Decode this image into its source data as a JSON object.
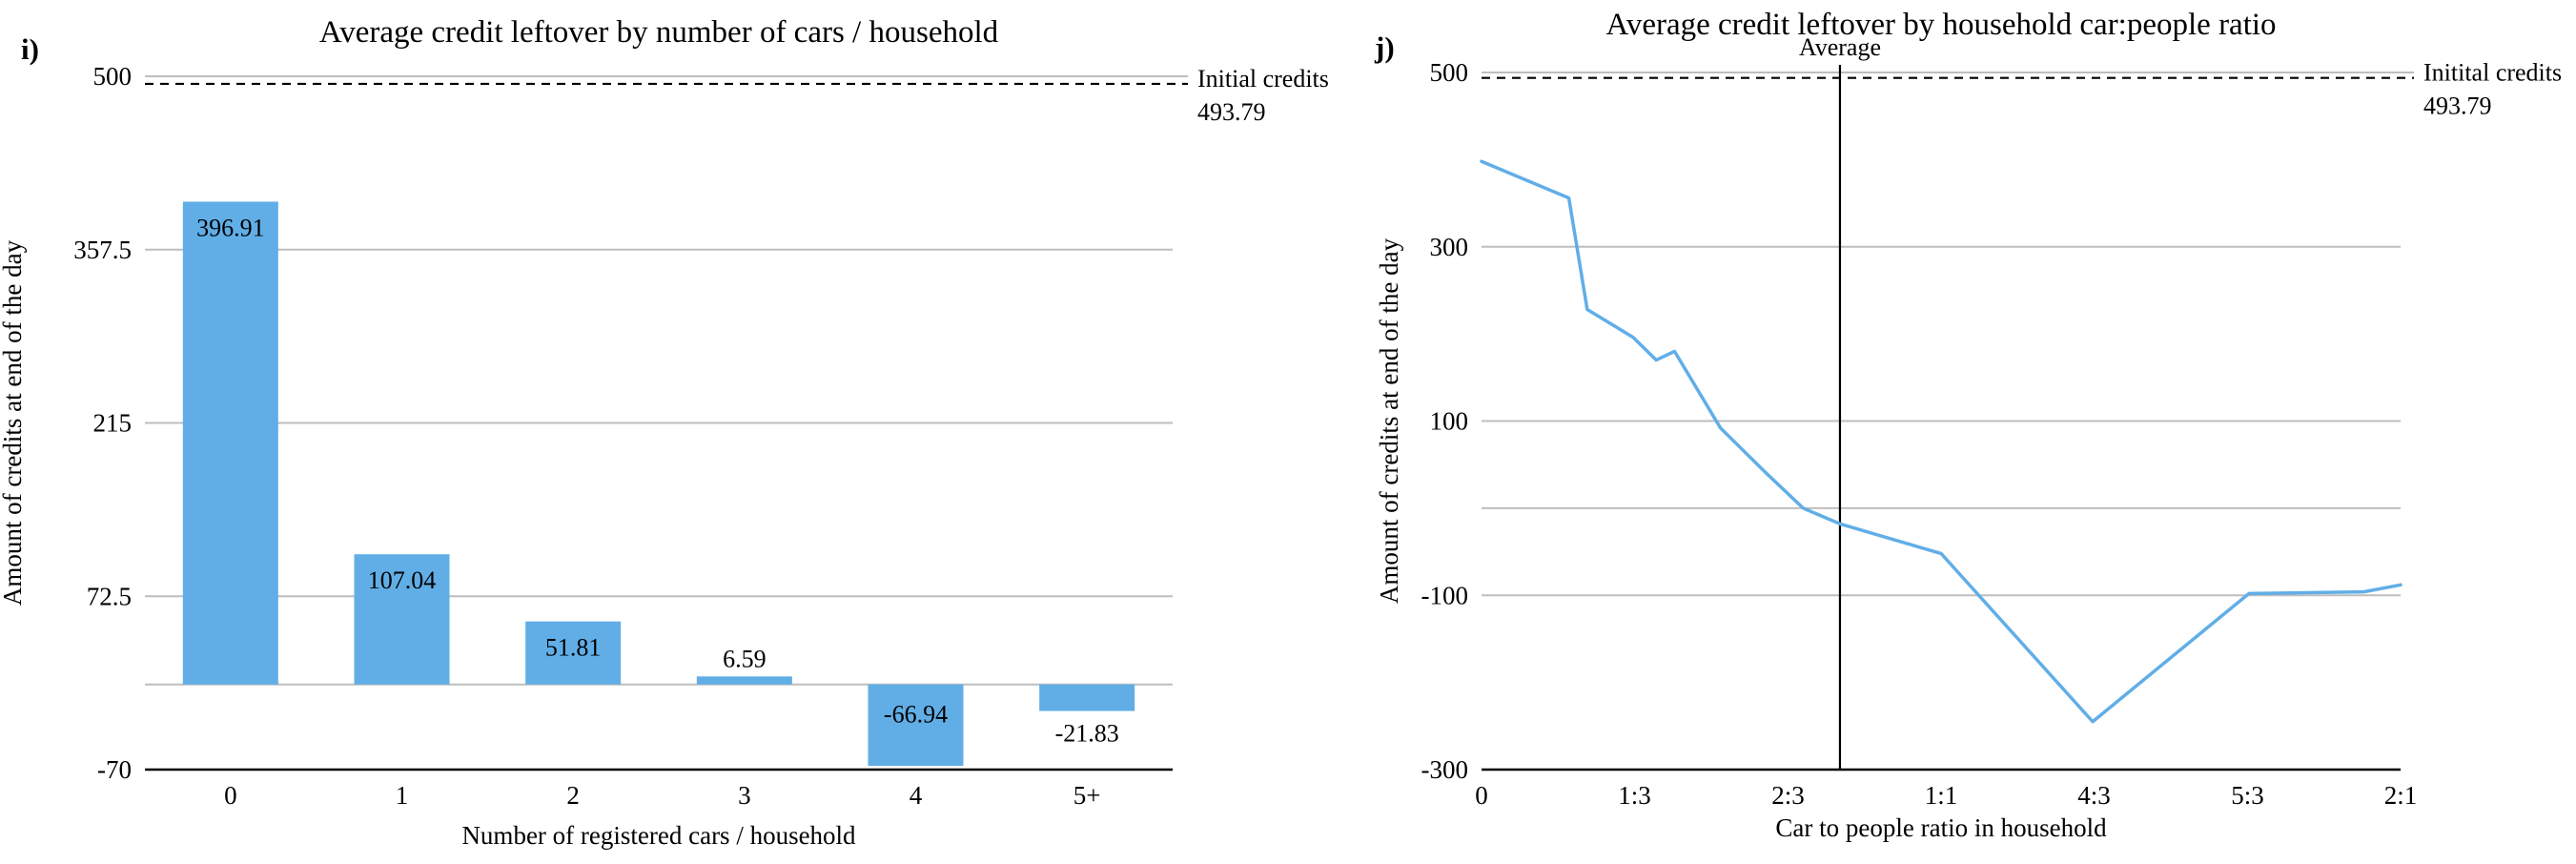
{
  "colors": {
    "background": "#ffffff",
    "bar": "#61AEE7",
    "line": "#61AEE7",
    "grid": "#BEBEBE",
    "axis": "#000000",
    "text": "#000000"
  },
  "chart_data": [
    {
      "id": "cars",
      "type": "bar",
      "panel_label": "i)",
      "title": "Average credit leftover by number of cars / household",
      "xlabel": "Number of registered cars / household",
      "ylabel": "Amount of credits at end of the day",
      "categories": [
        "0",
        "1",
        "2",
        "3",
        "4",
        "5+"
      ],
      "values": [
        396.91,
        107.04,
        51.81,
        6.59,
        -66.94,
        -21.83
      ],
      "value_labels": [
        "396.91",
        "107.04",
        "51.81",
        "6.59",
        "-66.94",
        "-21.83"
      ],
      "ylim": [
        -70,
        500
      ],
      "yticks": [
        500,
        357.5,
        215,
        72.5,
        -70
      ],
      "ytick_labels": [
        "500",
        "357.5",
        "215",
        "72.5",
        "-70"
      ],
      "gridlines": [
        500,
        357.5,
        215,
        72.5,
        0
      ],
      "grid": true,
      "legend": false,
      "reference_line": {
        "value": 493.79,
        "label_line1": "Initial credits",
        "label_line2": "493.79",
        "style": "dashed"
      }
    },
    {
      "id": "ratio",
      "type": "line",
      "panel_label": "j)",
      "title": "Average credit leftover by household car:people ratio",
      "xlabel": "Car to people ratio in household",
      "ylabel": "Amount of credits at end of the day",
      "xlim": [
        0,
        2
      ],
      "ylim": [
        -300,
        500
      ],
      "xticks": [
        0,
        0.333,
        0.667,
        1,
        1.333,
        1.667,
        2
      ],
      "xtick_labels": [
        "0",
        "1:3",
        "2:3",
        "1:1",
        "4:3",
        "5:3",
        "2:1"
      ],
      "x": [
        0,
        0.19,
        0.23,
        0.33,
        0.38,
        0.42,
        0.52,
        0.62,
        0.7,
        0.78,
        1.0,
        1.33,
        1.67,
        1.92,
        2.0
      ],
      "y": [
        398,
        356,
        228,
        196,
        170,
        180,
        92,
        40,
        0,
        -18,
        -52,
        -245,
        -98,
        -96,
        -88
      ],
      "yticks": [
        500,
        300,
        100,
        -100,
        -300
      ],
      "ytick_labels": [
        "500",
        "300",
        "100",
        "-100",
        "-300"
      ],
      "gridlines": [
        500,
        300,
        100,
        0,
        -100
      ],
      "grid": true,
      "legend": false,
      "reference_line": {
        "value": 493.79,
        "label_line1": "Initital credits",
        "label_line2": "493.79",
        "style": "dashed"
      },
      "average_line": {
        "x": 0.78,
        "label": "Average"
      }
    }
  ]
}
